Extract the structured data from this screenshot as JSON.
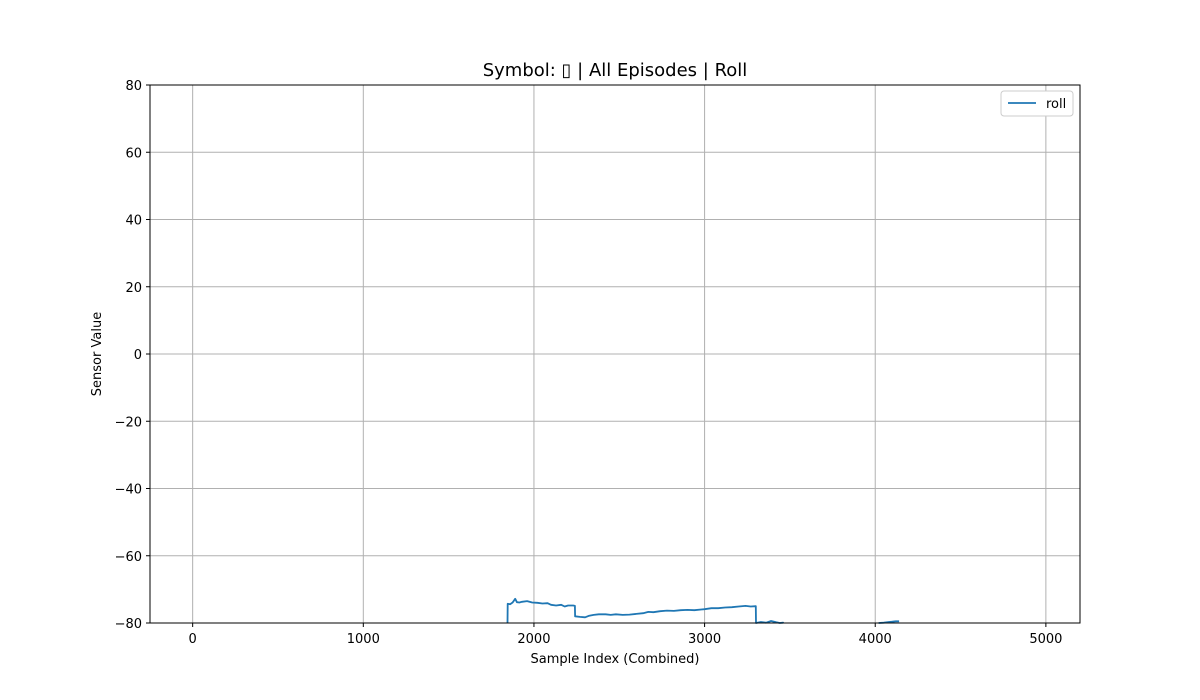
{
  "chart_data": {
    "type": "line",
    "title": "Symbol: ▯ | All Episodes | Roll",
    "xlabel": "Sample Index (Combined)",
    "ylabel": "Sensor Value",
    "xlim": [
      -250,
      5200
    ],
    "ylim": [
      -80,
      80
    ],
    "xticks": [
      0,
      1000,
      2000,
      3000,
      4000,
      5000
    ],
    "yticks": [
      -80,
      -60,
      -40,
      -20,
      0,
      20,
      40,
      60,
      80
    ],
    "xtick_labels": [
      "0",
      "1000",
      "2000",
      "3000",
      "4000",
      "5000"
    ],
    "ytick_labels": [
      "−80",
      "−60",
      "−40",
      "−20",
      "0",
      "20",
      "40",
      "60",
      "80"
    ],
    "grid": true,
    "legend_position": "top-right",
    "series": [
      {
        "name": "roll",
        "color": "#1f77b4",
        "x": [
          1845,
          1846,
          1860,
          1875,
          1890,
          1900,
          1915,
          1930,
          1960,
          1990,
          2020,
          2050,
          2080,
          2100,
          2130,
          2160,
          2180,
          2200,
          2230,
          2240,
          2241,
          2270,
          2300,
          2320,
          2350,
          2380,
          2420,
          2450,
          2480,
          2520,
          2560,
          2600,
          2640,
          2670,
          2700,
          2740,
          2780,
          2820,
          2860,
          2900,
          2940,
          2980,
          3000,
          3040,
          3080,
          3120,
          3160,
          3200,
          3240,
          3270,
          3300,
          3301,
          3330,
          3360,
          3390,
          3420,
          3440,
          3460,
          3461
        ],
        "y": [
          -80,
          -74.3,
          -74.4,
          -73.9,
          -72.8,
          -73.8,
          -73.9,
          -73.7,
          -73.5,
          -73.9,
          -74.0,
          -74.2,
          -74.1,
          -74.6,
          -74.8,
          -74.6,
          -75.1,
          -74.8,
          -74.8,
          -74.9,
          -78.0,
          -78.2,
          -78.3,
          -77.9,
          -77.6,
          -77.4,
          -77.4,
          -77.6,
          -77.4,
          -77.6,
          -77.5,
          -77.3,
          -77.1,
          -76.7,
          -76.8,
          -76.5,
          -76.3,
          -76.4,
          -76.2,
          -76.1,
          -76.2,
          -76.0,
          -75.9,
          -75.6,
          -75.6,
          -75.4,
          -75.3,
          -75.1,
          -74.9,
          -75.1,
          -75.0,
          -80.0,
          -79.7,
          -79.9,
          -79.4,
          -79.8,
          -80.0,
          -79.9,
          -80.0
        ]
      },
      {
        "name": "",
        "color": "#1f77b4",
        "x": [
          4020,
          4050,
          4080,
          4100,
          4120,
          4140
        ],
        "y": [
          -80,
          -79.9,
          -79.7,
          -79.6,
          -79.5,
          -79.5
        ]
      }
    ]
  }
}
